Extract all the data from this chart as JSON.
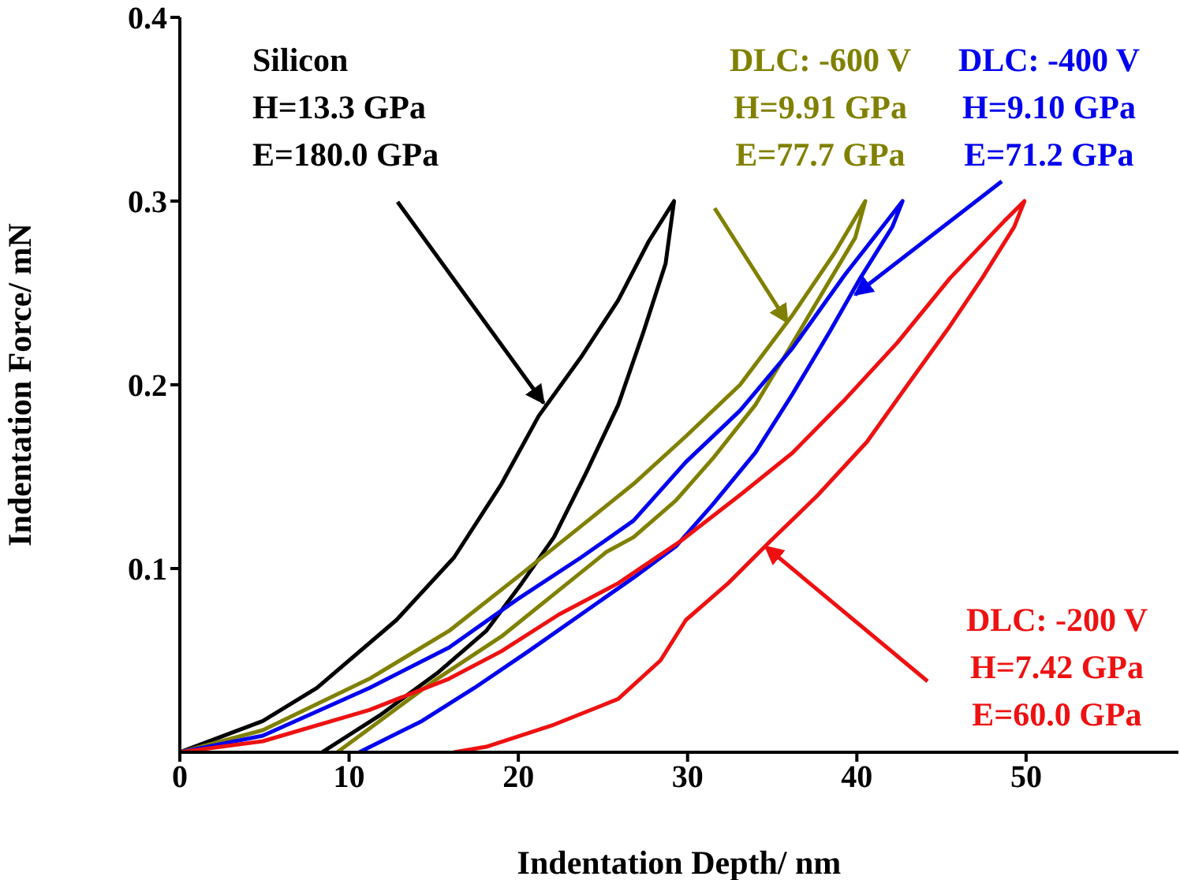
{
  "chart_data": {
    "type": "line",
    "xlabel": "Indentation Depth/ nm",
    "ylabel": "Indentation Force/ mN",
    "xlim": [
      0,
      59
    ],
    "xticks": [
      0,
      10,
      20,
      30,
      40,
      50
    ],
    "ylim": [
      0,
      0.4
    ],
    "yticks": [
      0.1,
      0.2,
      0.3,
      0.4
    ],
    "grid": false,
    "legend": false,
    "marker": "none",
    "line_style": "solid",
    "series": [
      {
        "name": "Silicon",
        "color": "#000000",
        "x": [
          0,
          4.9,
          8.1,
          12.8,
          16.2,
          19.0,
          21.2,
          23.7,
          25.9,
          27.7,
          29.2,
          28.7,
          27.4,
          25.9,
          24.0,
          22.1,
          20.2,
          18.1,
          15.2,
          11.8,
          8.4
        ],
        "values": [
          0,
          0.017,
          0.035,
          0.072,
          0.106,
          0.146,
          0.183,
          0.215,
          0.246,
          0.278,
          0.3,
          0.266,
          0.229,
          0.189,
          0.152,
          0.117,
          0.092,
          0.066,
          0.043,
          0.02,
          0
        ]
      },
      {
        "name": "DLC: -600 V",
        "color": "#808000",
        "x": [
          0,
          4.9,
          11.2,
          15.9,
          19.9,
          23.7,
          26.8,
          29.9,
          33.1,
          36.2,
          38.7,
          40.5,
          39.9,
          37.7,
          35.9,
          34.0,
          31.5,
          29.3,
          26.8,
          25.2,
          22.1,
          19.0,
          15.2,
          11.8,
          9.3
        ],
        "values": [
          0,
          0.012,
          0.04,
          0.066,
          0.095,
          0.123,
          0.146,
          0.172,
          0.2,
          0.238,
          0.272,
          0.3,
          0.28,
          0.246,
          0.218,
          0.189,
          0.16,
          0.137,
          0.117,
          0.109,
          0.086,
          0.063,
          0.04,
          0.017,
          0
        ]
      },
      {
        "name": "DLC: -400 V",
        "color": "#0000ee",
        "x": [
          0,
          4.9,
          11.2,
          15.9,
          19.9,
          23.7,
          26.8,
          29.9,
          33.1,
          36.2,
          39.3,
          42.7,
          42.1,
          40.2,
          38.4,
          36.2,
          34.0,
          31.5,
          29.3,
          26.8,
          23.7,
          20.6,
          17.4,
          14.3,
          10.6
        ],
        "values": [
          0,
          0.009,
          0.035,
          0.057,
          0.083,
          0.106,
          0.126,
          0.158,
          0.186,
          0.22,
          0.26,
          0.3,
          0.286,
          0.258,
          0.229,
          0.195,
          0.163,
          0.135,
          0.112,
          0.095,
          0.075,
          0.055,
          0.035,
          0.017,
          0
        ]
      },
      {
        "name": "DLC: -200 V",
        "color": "#ee1111",
        "x": [
          0,
          4.9,
          11.2,
          15.9,
          19.0,
          22.4,
          25.9,
          29.6,
          33.1,
          36.2,
          39.3,
          42.4,
          45.5,
          48.7,
          49.9,
          49.3,
          47.4,
          45.5,
          43.0,
          40.6,
          37.7,
          34.9,
          32.4,
          29.9,
          28.4,
          25.9,
          22.1,
          18.1,
          16.2
        ],
        "values": [
          0,
          0.006,
          0.023,
          0.04,
          0.055,
          0.075,
          0.092,
          0.115,
          0.14,
          0.163,
          0.192,
          0.223,
          0.258,
          0.289,
          0.3,
          0.286,
          0.258,
          0.232,
          0.2,
          0.169,
          0.14,
          0.115,
          0.092,
          0.072,
          0.05,
          0.029,
          0.015,
          0.003,
          0
        ]
      }
    ],
    "annotations": [
      "H=13.3 GPa",
      {
        "text": "E=180.0 GPa",
        "x": 21.5,
        "y": 0.19
      },
      "H=9.91 GPa",
      {
        "text": "E=77.7 GPa",
        "x": 35.9,
        "y": 0.234
      },
      "H=9.10 GPa",
      {
        "text": "E=71.2 GPa",
        "x": 39.9,
        "y": 0.249
      },
      {
        "text": "H=7.42 GPa",
        "x": 34.6,
        "y": 0.112
      },
      "E=60.0 GPa"
    ]
  }
}
